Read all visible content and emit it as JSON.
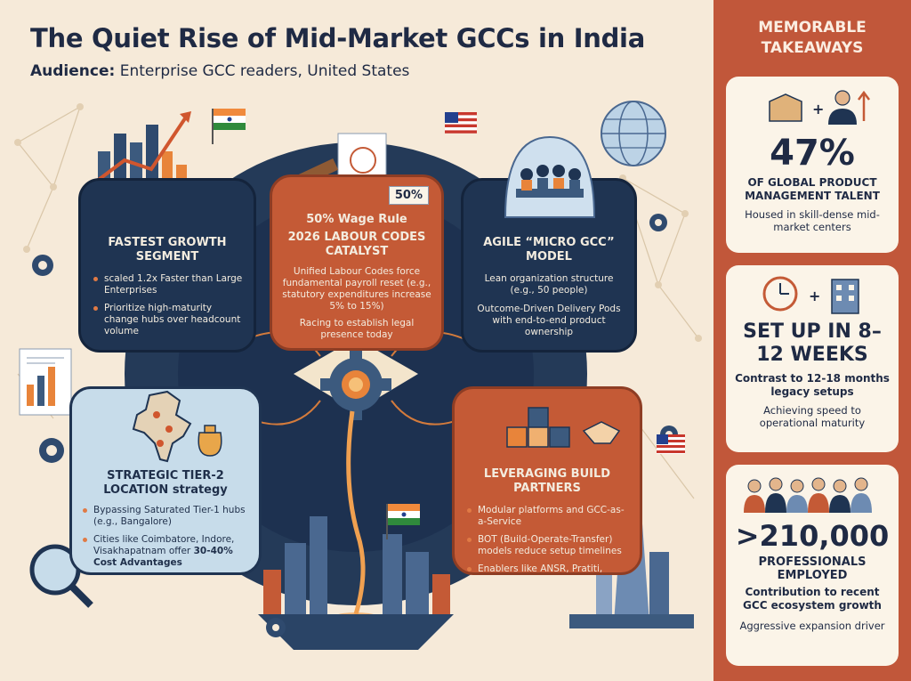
{
  "title": "The Quiet Rise of Mid-Market GCCs in India",
  "audience_label": "Audience:",
  "audience_value": "Enterprise GCC readers, United States",
  "panels": {
    "growth": {
      "heading": "FASTEST GROWTH SEGMENT",
      "bullets": [
        "scaled 1.2x Faster than Large Enterprises",
        "Prioritize high-maturity change hubs over headcount volume"
      ]
    },
    "labour": {
      "badge": "50%",
      "subheading": "50% Wage Rule",
      "heading": "2026 LABOUR CODES CATALYST",
      "text1": "Unified Labour Codes force fundamental payroll reset (e.g., statutory expenditures increase 5% to 15%)",
      "text2": "Racing to establish legal presence today"
    },
    "agile": {
      "heading": "AGILE “MICRO GCC” MODEL",
      "text1": "Lean organization structure (e.g., 50 people)",
      "text2": "Outcome-Driven Delivery Pods with end-to-end product ownership"
    },
    "tier2": {
      "heading": "STRATEGIC TIER-2 LOCATION strategy",
      "bullets": [
        "Bypassing Saturated Tier-1 hubs (e.g., Bangalore)"
      ],
      "last_bullet": "Cities like Coimbatore, Indore, Visakhapatnam offer",
      "last_bullet_bold": "30-40% Cost Advantages"
    },
    "build": {
      "heading": "LEVERAGING BUILD PARTNERS",
      "bullets": [
        "Modular platforms and GCC-as-a-Service",
        "BOT (Build-Operate-Transfer) models reduce setup timelines",
        "Enablers like ANSR, Pratiti, Bootminds dismantle barriers"
      ]
    }
  },
  "sidebar": {
    "title": "MEMORABLE TAKEAWAYS",
    "cards": [
      {
        "big": "47%",
        "label": "OF GLOBAL PRODUCT MANAGEMENT TALENT",
        "note": "Housed in skill-dense mid-market centers"
      },
      {
        "big": "SET UP IN 8–12 WEEKS",
        "label": "Contrast to 12-18 months legacy setups",
        "note": "Achieving speed to operational maturity"
      },
      {
        "big": ">210,000",
        "label": "PROFESSIONALS EMPLOYED",
        "label2": "Contribution to recent GCC ecosystem growth",
        "note": "Aggressive expansion driver"
      }
    ]
  },
  "colors": {
    "navy": "#1f3452",
    "rust": "#c45a36",
    "cream": "#f6ead9",
    "sidebar": "#c1573a",
    "orange": "#e8843a",
    "light_blue": "#c7dcea"
  }
}
